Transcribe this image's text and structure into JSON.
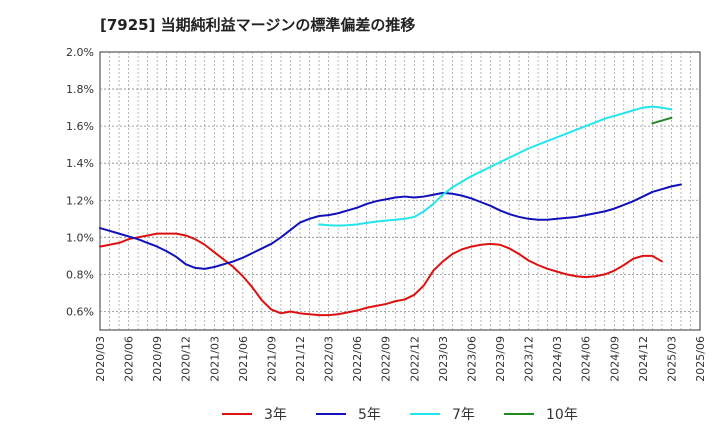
{
  "chart_data": {
    "type": "line",
    "title": "[7925]  当期純利益マージンの標準偏差の推移",
    "xlabel": "",
    "ylabel": "",
    "ylim": [
      0.5,
      2.0
    ],
    "yticks": [
      {
        "value": 0.6,
        "label": "0.6%"
      },
      {
        "value": 0.8,
        "label": "0.8%"
      },
      {
        "value": 1.0,
        "label": "1.0%"
      },
      {
        "value": 1.2,
        "label": "1.2%"
      },
      {
        "value": 1.4,
        "label": "1.4%"
      },
      {
        "value": 1.6,
        "label": "1.6%"
      },
      {
        "value": 1.8,
        "label": "1.8%"
      },
      {
        "value": 2.0,
        "label": "2.0%"
      }
    ],
    "xrange": [
      "2020-03",
      "2025-06"
    ],
    "xticks": [
      "2020/03",
      "2020/06",
      "2020/09",
      "2020/12",
      "2021/03",
      "2021/06",
      "2021/09",
      "2021/12",
      "2022/03",
      "2022/06",
      "2022/09",
      "2022/12",
      "2023/03",
      "2023/06",
      "2023/09",
      "2023/12",
      "2024/03",
      "2024/06",
      "2024/09",
      "2024/12",
      "2025/03",
      "2025/06"
    ],
    "grid": true,
    "legend_position": "bottom",
    "series": [
      {
        "name": "3年",
        "color": "#dd1111",
        "points": [
          [
            "2020-03",
            0.95
          ],
          [
            "2020-04",
            0.96
          ],
          [
            "2020-05",
            0.97
          ],
          [
            "2020-06",
            0.99
          ],
          [
            "2020-07",
            1.0
          ],
          [
            "2020-08",
            1.01
          ],
          [
            "2020-09",
            1.02
          ],
          [
            "2020-10",
            1.02
          ],
          [
            "2020-11",
            1.02
          ],
          [
            "2020-12",
            1.01
          ],
          [
            "2021-01",
            0.99
          ],
          [
            "2021-02",
            0.96
          ],
          [
            "2021-03",
            0.92
          ],
          [
            "2021-04",
            0.88
          ],
          [
            "2021-05",
            0.84
          ],
          [
            "2021-06",
            0.79
          ],
          [
            "2021-07",
            0.73
          ],
          [
            "2021-08",
            0.66
          ],
          [
            "2021-09",
            0.61
          ],
          [
            "2021-10",
            0.59
          ],
          [
            "2021-11",
            0.6
          ],
          [
            "2021-12",
            0.59
          ],
          [
            "2022-01",
            0.585
          ],
          [
            "2022-02",
            0.58
          ],
          [
            "2022-03",
            0.58
          ],
          [
            "2022-04",
            0.585
          ],
          [
            "2022-05",
            0.595
          ],
          [
            "2022-06",
            0.605
          ],
          [
            "2022-07",
            0.62
          ],
          [
            "2022-08",
            0.63
          ],
          [
            "2022-09",
            0.64
          ],
          [
            "2022-10",
            0.655
          ],
          [
            "2022-11",
            0.665
          ],
          [
            "2022-12",
            0.69
          ],
          [
            "2023-01",
            0.74
          ],
          [
            "2023-02",
            0.82
          ],
          [
            "2023-03",
            0.87
          ],
          [
            "2023-04",
            0.91
          ],
          [
            "2023-05",
            0.935
          ],
          [
            "2023-06",
            0.95
          ],
          [
            "2023-07",
            0.96
          ],
          [
            "2023-08",
            0.965
          ],
          [
            "2023-09",
            0.96
          ],
          [
            "2023-10",
            0.94
          ],
          [
            "2023-11",
            0.91
          ],
          [
            "2023-12",
            0.875
          ],
          [
            "2024-01",
            0.85
          ],
          [
            "2024-02",
            0.83
          ],
          [
            "2024-03",
            0.815
          ],
          [
            "2024-04",
            0.8
          ],
          [
            "2024-05",
            0.79
          ],
          [
            "2024-06",
            0.785
          ],
          [
            "2024-07",
            0.79
          ],
          [
            "2024-08",
            0.8
          ],
          [
            "2024-09",
            0.82
          ],
          [
            "2024-10",
            0.85
          ],
          [
            "2024-11",
            0.885
          ],
          [
            "2024-12",
            0.9
          ],
          [
            "2025-01",
            0.9
          ],
          [
            "2025-02",
            0.87
          ]
        ]
      },
      {
        "name": "5年",
        "color": "#1111bb",
        "points": [
          [
            "2020-03",
            1.05
          ],
          [
            "2020-04",
            1.035
          ],
          [
            "2020-05",
            1.02
          ],
          [
            "2020-06",
            1.005
          ],
          [
            "2020-07",
            0.99
          ],
          [
            "2020-08",
            0.97
          ],
          [
            "2020-09",
            0.95
          ],
          [
            "2020-10",
            0.925
          ],
          [
            "2020-11",
            0.895
          ],
          [
            "2020-12",
            0.855
          ],
          [
            "2021-01",
            0.835
          ],
          [
            "2021-02",
            0.83
          ],
          [
            "2021-03",
            0.84
          ],
          [
            "2021-04",
            0.855
          ],
          [
            "2021-05",
            0.87
          ],
          [
            "2021-06",
            0.89
          ],
          [
            "2021-07",
            0.915
          ],
          [
            "2021-08",
            0.94
          ],
          [
            "2021-09",
            0.965
          ],
          [
            "2021-10",
            1.0
          ],
          [
            "2021-11",
            1.04
          ],
          [
            "2021-12",
            1.08
          ],
          [
            "2022-01",
            1.1
          ],
          [
            "2022-02",
            1.115
          ],
          [
            "2022-03",
            1.12
          ],
          [
            "2022-04",
            1.13
          ],
          [
            "2022-05",
            1.145
          ],
          [
            "2022-06",
            1.16
          ],
          [
            "2022-07",
            1.18
          ],
          [
            "2022-08",
            1.195
          ],
          [
            "2022-09",
            1.205
          ],
          [
            "2022-10",
            1.215
          ],
          [
            "2022-11",
            1.22
          ],
          [
            "2022-12",
            1.215
          ],
          [
            "2023-01",
            1.22
          ],
          [
            "2023-02",
            1.23
          ],
          [
            "2023-03",
            1.24
          ],
          [
            "2023-04",
            1.235
          ],
          [
            "2023-05",
            1.225
          ],
          [
            "2023-06",
            1.21
          ],
          [
            "2023-07",
            1.19
          ],
          [
            "2023-08",
            1.17
          ],
          [
            "2023-09",
            1.145
          ],
          [
            "2023-10",
            1.125
          ],
          [
            "2023-11",
            1.11
          ],
          [
            "2023-12",
            1.1
          ],
          [
            "2024-01",
            1.095
          ],
          [
            "2024-02",
            1.095
          ],
          [
            "2024-03",
            1.1
          ],
          [
            "2024-04",
            1.105
          ],
          [
            "2024-05",
            1.11
          ],
          [
            "2024-06",
            1.12
          ],
          [
            "2024-07",
            1.13
          ],
          [
            "2024-08",
            1.14
          ],
          [
            "2024-09",
            1.155
          ],
          [
            "2024-10",
            1.175
          ],
          [
            "2024-11",
            1.195
          ],
          [
            "2024-12",
            1.22
          ],
          [
            "2025-01",
            1.245
          ],
          [
            "2025-02",
            1.26
          ],
          [
            "2025-03",
            1.275
          ],
          [
            "2025-04",
            1.285
          ]
        ]
      },
      {
        "name": "7年",
        "color": "#22e5f0",
        "points": [
          [
            "2022-02",
            1.07
          ],
          [
            "2022-03",
            1.065
          ],
          [
            "2022-04",
            1.063
          ],
          [
            "2022-05",
            1.065
          ],
          [
            "2022-06",
            1.07
          ],
          [
            "2022-07",
            1.078
          ],
          [
            "2022-08",
            1.085
          ],
          [
            "2022-09",
            1.09
          ],
          [
            "2022-10",
            1.095
          ],
          [
            "2022-11",
            1.1
          ],
          [
            "2022-12",
            1.11
          ],
          [
            "2023-01",
            1.14
          ],
          [
            "2023-02",
            1.18
          ],
          [
            "2023-03",
            1.23
          ],
          [
            "2023-04",
            1.27
          ],
          [
            "2023-05",
            1.3
          ],
          [
            "2023-06",
            1.33
          ],
          [
            "2023-07",
            1.355
          ],
          [
            "2023-08",
            1.38
          ],
          [
            "2023-09",
            1.405
          ],
          [
            "2023-10",
            1.43
          ],
          [
            "2023-11",
            1.455
          ],
          [
            "2023-12",
            1.48
          ],
          [
            "2024-01",
            1.5
          ],
          [
            "2024-02",
            1.52
          ],
          [
            "2024-03",
            1.54
          ],
          [
            "2024-04",
            1.56
          ],
          [
            "2024-05",
            1.58
          ],
          [
            "2024-06",
            1.6
          ],
          [
            "2024-07",
            1.62
          ],
          [
            "2024-08",
            1.64
          ],
          [
            "2024-09",
            1.655
          ],
          [
            "2024-10",
            1.67
          ],
          [
            "2024-11",
            1.685
          ],
          [
            "2024-12",
            1.7
          ],
          [
            "2025-01",
            1.705
          ],
          [
            "2025-02",
            1.7
          ],
          [
            "2025-03",
            1.69
          ]
        ]
      },
      {
        "name": "10年",
        "color": "#228822",
        "points": [
          [
            "2025-01",
            1.615
          ],
          [
            "2025-02",
            1.63
          ],
          [
            "2025-03",
            1.645
          ]
        ]
      }
    ]
  }
}
